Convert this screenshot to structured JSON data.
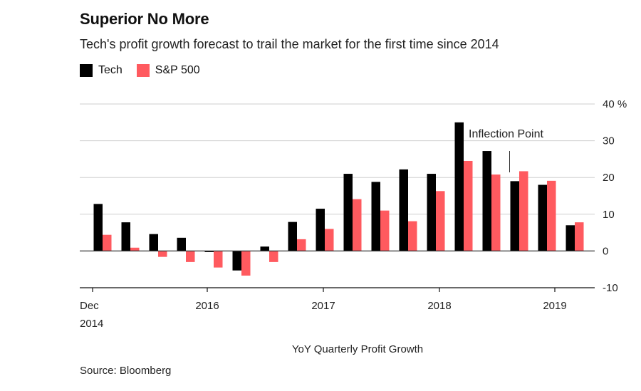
{
  "header": {
    "title": "Superior No More",
    "subtitle": "Tech's profit growth forecast to trail the market for the first time since 2014"
  },
  "source": "Source: Bloomberg",
  "colors": {
    "tech": "#000000",
    "sp500": "#ff5a5f"
  },
  "chart_data": {
    "type": "bar",
    "title": "Superior No More",
    "xlabel": "YoY Quarterly Profit Growth",
    "ylabel": "%",
    "ylim": [
      -10,
      40
    ],
    "yticks": [
      -10,
      0,
      10,
      20,
      30,
      40
    ],
    "ytick_labels": [
      "-10",
      "0",
      "10",
      "20",
      "30",
      "40 %"
    ],
    "x_tick_labels": [
      "Dec",
      "2016",
      "2017",
      "2018",
      "2019"
    ],
    "x_tick_sublabel": "2014",
    "categories": [
      "Q4 2014",
      "Q1 2015",
      "Q2 2015",
      "Q3 2015",
      "Q4 2015",
      "Q1 2016",
      "Q2 2016",
      "Q3 2016",
      "Q4 2016",
      "Q1 2017",
      "Q2 2017",
      "Q3 2017",
      "Q4 2017",
      "Q1 2018",
      "Q2 2018",
      "Q3 2018",
      "Q4 2018",
      "Q1 2019"
    ],
    "series": [
      {
        "name": "Tech",
        "values": [
          12.8,
          7.8,
          4.6,
          3.6,
          -0.3,
          -5.3,
          1.2,
          7.9,
          11.5,
          21.0,
          18.8,
          22.2,
          21.0,
          35.0,
          27.2,
          19.0,
          18.0,
          7.0
        ]
      },
      {
        "name": "S&P 500",
        "values": [
          4.4,
          0.9,
          -1.6,
          -3.0,
          -4.5,
          -6.7,
          -3.0,
          3.2,
          6.0,
          14.1,
          11.0,
          8.1,
          16.3,
          24.5,
          20.8,
          21.7,
          19.1,
          7.8
        ]
      }
    ],
    "legend_position": "top-left",
    "annotation": {
      "text": "Inflection Point",
      "category_index": 15
    }
  }
}
